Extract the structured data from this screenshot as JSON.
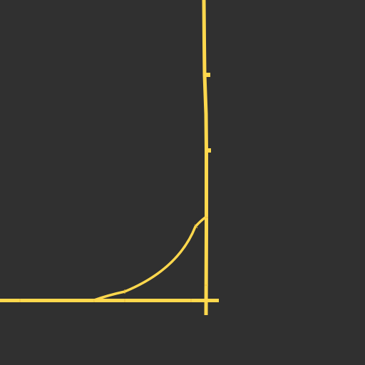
{
  "map": {
    "background_color": "#303030",
    "track_color": "#FFD84D",
    "joint_color": "#E8BE3A",
    "elements": {
      "horizontal_track": "straight-track",
      "vertical_track": "straight-track",
      "curve_track": "curved-track",
      "switch": "junction"
    }
  }
}
